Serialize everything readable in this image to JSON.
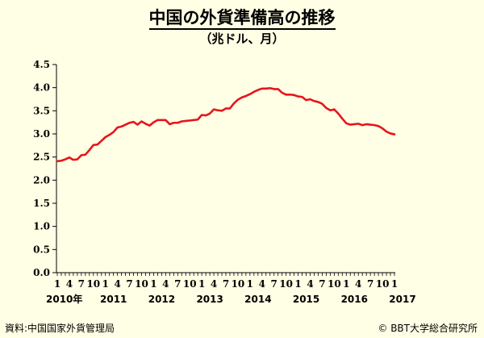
{
  "title": "中国の外貨準備高の推移",
  "subtitle": "（兆ドル、月）",
  "source": "資料:中国国家外貨管理局",
  "copyright": "© BBT大学総合研究所",
  "chart_data": {
    "type": "line",
    "title": "中国の外貨準備高の推移",
    "ylabel": "",
    "xlabel": "",
    "ylim": [
      0,
      4.5
    ],
    "yticks": [
      "0.0",
      "0.5",
      "1.0",
      "1.5",
      "2.0",
      "2.5",
      "3.0",
      "3.5",
      "4.0",
      "4.5"
    ],
    "ytick_values": [
      0,
      0.5,
      1,
      1.5,
      2,
      2.5,
      3,
      3.5,
      4,
      4.5
    ],
    "month_ticks": [
      {
        "i": 0,
        "label": "1"
      },
      {
        "i": 3,
        "label": "4"
      },
      {
        "i": 6,
        "label": "7"
      },
      {
        "i": 9,
        "label": "10"
      },
      {
        "i": 12,
        "label": "1"
      },
      {
        "i": 15,
        "label": "4"
      },
      {
        "i": 18,
        "label": "7"
      },
      {
        "i": 21,
        "label": "10"
      },
      {
        "i": 24,
        "label": "1"
      },
      {
        "i": 27,
        "label": "4"
      },
      {
        "i": 30,
        "label": "7"
      },
      {
        "i": 33,
        "label": "10"
      },
      {
        "i": 36,
        "label": "1"
      },
      {
        "i": 39,
        "label": "4"
      },
      {
        "i": 42,
        "label": "7"
      },
      {
        "i": 45,
        "label": "10"
      },
      {
        "i": 48,
        "label": "1"
      },
      {
        "i": 51,
        "label": "4"
      },
      {
        "i": 54,
        "label": "7"
      },
      {
        "i": 57,
        "label": "10"
      },
      {
        "i": 60,
        "label": "1"
      },
      {
        "i": 63,
        "label": "4"
      },
      {
        "i": 66,
        "label": "7"
      },
      {
        "i": 69,
        "label": "10"
      },
      {
        "i": 72,
        "label": "1"
      },
      {
        "i": 75,
        "label": "4"
      },
      {
        "i": 78,
        "label": "7"
      },
      {
        "i": 81,
        "label": "10"
      },
      {
        "i": 84,
        "label": "1"
      }
    ],
    "year_labels": [
      {
        "i": 0,
        "label": "2010年"
      },
      {
        "i": 12,
        "label": "2011"
      },
      {
        "i": 24,
        "label": "2012"
      },
      {
        "i": 36,
        "label": "2013"
      },
      {
        "i": 48,
        "label": "2014"
      },
      {
        "i": 60,
        "label": "2015"
      },
      {
        "i": 72,
        "label": "2016"
      },
      {
        "i": 84,
        "label": "2017"
      }
    ],
    "series": [
      {
        "color": "#E8141B",
        "x": [
          "2010-01",
          "2010-02",
          "2010-03",
          "2010-04",
          "2010-05",
          "2010-06",
          "2010-07",
          "2010-08",
          "2010-09",
          "2010-10",
          "2010-11",
          "2010-12",
          "2011-01",
          "2011-02",
          "2011-03",
          "2011-04",
          "2011-05",
          "2011-06",
          "2011-07",
          "2011-08",
          "2011-09",
          "2011-10",
          "2011-11",
          "2011-12",
          "2012-01",
          "2012-02",
          "2012-03",
          "2012-04",
          "2012-05",
          "2012-06",
          "2012-07",
          "2012-08",
          "2012-09",
          "2012-10",
          "2012-11",
          "2012-12",
          "2013-01",
          "2013-02",
          "2013-03",
          "2013-04",
          "2013-05",
          "2013-06",
          "2013-07",
          "2013-08",
          "2013-09",
          "2013-10",
          "2013-11",
          "2013-12",
          "2014-01",
          "2014-02",
          "2014-03",
          "2014-04",
          "2014-05",
          "2014-06",
          "2014-07",
          "2014-08",
          "2014-09",
          "2014-10",
          "2014-11",
          "2014-12",
          "2015-01",
          "2015-02",
          "2015-03",
          "2015-04",
          "2015-05",
          "2015-06",
          "2015-07",
          "2015-08",
          "2015-09",
          "2015-10",
          "2015-11",
          "2015-12",
          "2016-01",
          "2016-02",
          "2016-03",
          "2016-04",
          "2016-05",
          "2016-06",
          "2016-07",
          "2016-08",
          "2016-09",
          "2016-10",
          "2016-11",
          "2016-12",
          "2017-01"
        ],
        "values": [
          2.41,
          2.42,
          2.45,
          2.49,
          2.44,
          2.45,
          2.54,
          2.55,
          2.65,
          2.76,
          2.77,
          2.85,
          2.93,
          2.98,
          3.04,
          3.14,
          3.16,
          3.2,
          3.24,
          3.26,
          3.2,
          3.27,
          3.22,
          3.18,
          3.25,
          3.3,
          3.3,
          3.3,
          3.21,
          3.24,
          3.24,
          3.27,
          3.28,
          3.29,
          3.3,
          3.31,
          3.41,
          3.4,
          3.44,
          3.53,
          3.51,
          3.5,
          3.55,
          3.55,
          3.66,
          3.74,
          3.79,
          3.82,
          3.86,
          3.91,
          3.95,
          3.98,
          3.98,
          3.99,
          3.97,
          3.97,
          3.89,
          3.85,
          3.85,
          3.84,
          3.81,
          3.8,
          3.73,
          3.75,
          3.71,
          3.69,
          3.65,
          3.56,
          3.51,
          3.53,
          3.44,
          3.33,
          3.23,
          3.2,
          3.21,
          3.22,
          3.19,
          3.21,
          3.2,
          3.19,
          3.17,
          3.12,
          3.05,
          3.01,
          2.99
        ]
      }
    ]
  }
}
